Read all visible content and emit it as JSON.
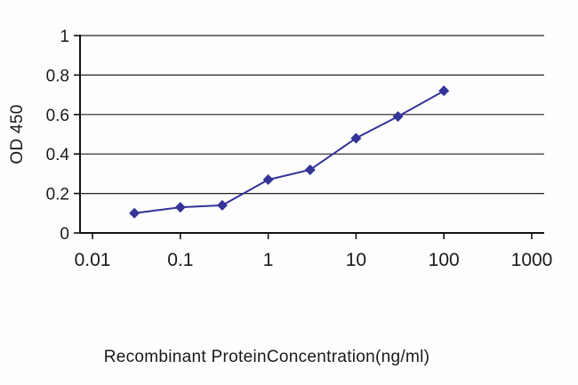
{
  "chart_data": {
    "type": "line",
    "title": "",
    "xlabel": "Recombinant ProteinConcentration(ng/ml)",
    "ylabel": "OD 450",
    "x_scale": "log",
    "xlim": [
      0.01,
      1000
    ],
    "ylim": [
      0,
      1
    ],
    "x_ticks": [
      0.01,
      0.1,
      1,
      10,
      100,
      1000
    ],
    "x_tick_labels": [
      "0.01",
      "0.1",
      "1",
      "10",
      "100",
      "1000"
    ],
    "y_ticks": [
      0,
      0.2,
      0.4,
      0.6,
      0.8,
      1
    ],
    "y_tick_labels": [
      "0",
      "0.2",
      "0.4",
      "0.6",
      "0.8",
      "1"
    ],
    "grid": "horizontal",
    "legend": "none",
    "series": [
      {
        "name": "OD 450",
        "x": [
          0.03,
          0.1,
          0.3,
          1,
          3,
          10,
          30,
          100
        ],
        "values": [
          0.1,
          0.13,
          0.14,
          0.27,
          0.32,
          0.48,
          0.59,
          0.72
        ],
        "color": "#333399",
        "marker": "diamond"
      }
    ],
    "colors": {
      "background": "#fdfdfd",
      "axis": "#111111",
      "grid": "#222222",
      "text": "#1a1a1a"
    }
  }
}
